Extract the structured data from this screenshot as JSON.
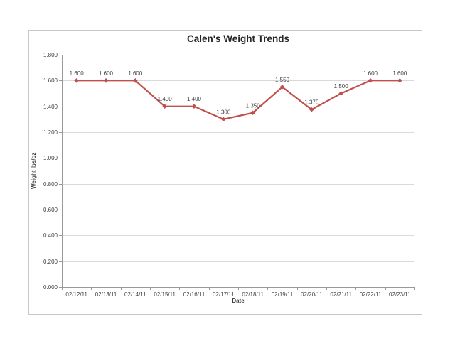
{
  "chart_data": {
    "type": "line",
    "title": "Calen's Weight Trends",
    "xlabel": "Date",
    "ylabel": "Weight lbs/oz",
    "categories": [
      "02/12/11",
      "02/13/11",
      "02/14/11",
      "02/15/11",
      "02/16/11",
      "02/17/11",
      "02/18/11",
      "02/19/11",
      "02/20/11",
      "02/21/11",
      "02/22/11",
      "02/23/11"
    ],
    "series": [
      {
        "name": "Weight",
        "values": [
          1.6,
          1.6,
          1.6,
          1.4,
          1.4,
          1.3,
          1.35,
          1.55,
          1.375,
          1.5,
          1.6,
          1.6
        ]
      }
    ],
    "data_labels": [
      "1.600",
      "1.600",
      "1.600",
      "1.400",
      "1.400",
      "1.300",
      "1.350",
      "1.550",
      "1.375",
      "1.500",
      "1.600",
      "1.600"
    ],
    "y_tick_labels": [
      "0.000",
      "0.200",
      "0.400",
      "0.600",
      "0.800",
      "1.000",
      "1.200",
      "1.400",
      "1.600",
      "1.800"
    ],
    "y_tick_step": 0.2,
    "ylim": [
      0,
      1.8
    ],
    "grid": true,
    "legend": "none",
    "marker": "diamond",
    "colors": {
      "series": "#C0504D",
      "gridline": "#D9D9D9",
      "axis": "#999999",
      "tick_text": "#3F3F3F",
      "title_text": "#262626",
      "frame": "#C8C8C8",
      "background": "#FFFFFF"
    }
  }
}
